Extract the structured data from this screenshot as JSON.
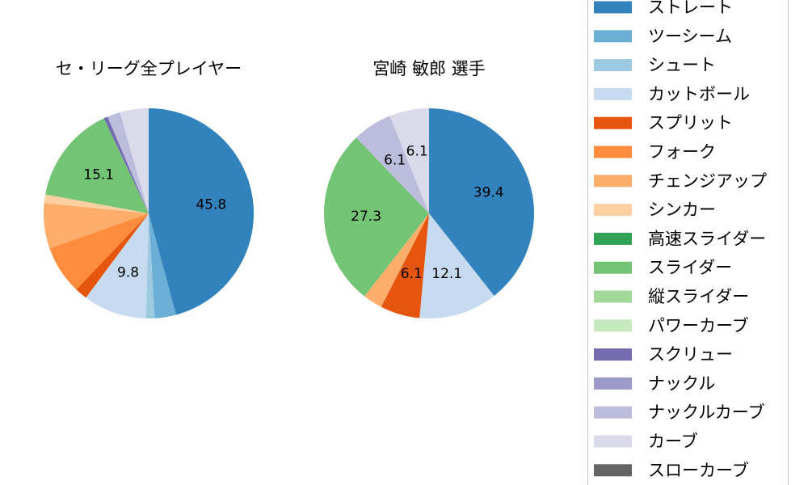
{
  "chart_data": [
    {
      "type": "pie",
      "title": "セ・リーグ全プレイヤー",
      "slices": [
        {
          "name": "ストレート",
          "value": 45.8,
          "label": "45.8",
          "color": "#3182bd"
        },
        {
          "name": "ツーシーム",
          "value": 3.3,
          "label": "",
          "color": "#6baed6"
        },
        {
          "name": "シュート",
          "value": 1.3,
          "label": "",
          "color": "#9ecae1"
        },
        {
          "name": "カットボール",
          "value": 9.8,
          "label": "9.8",
          "color": "#c6dbef"
        },
        {
          "name": "スプリット",
          "value": 1.9,
          "label": "",
          "color": "#e6550d"
        },
        {
          "name": "フォーク",
          "value": 7.5,
          "label": "",
          "color": "#fd8d3c"
        },
        {
          "name": "チェンジアップ",
          "value": 7.0,
          "label": "",
          "color": "#fdae6b"
        },
        {
          "name": "シンカー",
          "value": 1.3,
          "label": "",
          "color": "#fdd0a2"
        },
        {
          "name": "スライダー",
          "value": 15.1,
          "label": "15.1",
          "color": "#74c476"
        },
        {
          "name": "スクリュー",
          "value": 0.6,
          "label": "",
          "color": "#756bb1"
        },
        {
          "name": "ナックルカーブ",
          "value": 2.0,
          "label": "",
          "color": "#bcbddc"
        },
        {
          "name": "カーブ",
          "value": 4.4,
          "label": "",
          "color": "#dadaeb"
        }
      ]
    },
    {
      "type": "pie",
      "title": "宮崎 敏郎  選手",
      "slices": [
        {
          "name": "ストレート",
          "value": 39.4,
          "label": "39.4",
          "color": "#3182bd"
        },
        {
          "name": "カットボール",
          "value": 12.1,
          "label": "12.1",
          "color": "#c6dbef"
        },
        {
          "name": "スプリット",
          "value": 6.1,
          "label": "6.1",
          "color": "#e6550d"
        },
        {
          "name": "チェンジアップ",
          "value": 3.0,
          "label": "",
          "color": "#fdae6b"
        },
        {
          "name": "スライダー",
          "value": 27.3,
          "label": "27.3",
          "color": "#74c476"
        },
        {
          "name": "ナックルカーブ",
          "value": 6.1,
          "label": "6.1",
          "color": "#bcbddc"
        },
        {
          "name": "カーブ",
          "value": 6.1,
          "label": "6.1",
          "color": "#dadaeb"
        }
      ]
    }
  ],
  "legend": {
    "placement": "right",
    "items": [
      {
        "name": "ストレート",
        "color": "#3182bd"
      },
      {
        "name": "ツーシーム",
        "color": "#6baed6"
      },
      {
        "name": "シュート",
        "color": "#9ecae1"
      },
      {
        "name": "カットボール",
        "color": "#c6dbef"
      },
      {
        "name": "スプリット",
        "color": "#e6550d"
      },
      {
        "name": "フォーク",
        "color": "#fd8d3c"
      },
      {
        "name": "チェンジアップ",
        "color": "#fdae6b"
      },
      {
        "name": "シンカー",
        "color": "#fdd0a2"
      },
      {
        "name": "高速スライダー",
        "color": "#31a354"
      },
      {
        "name": "スライダー",
        "color": "#74c476"
      },
      {
        "name": "縦スライダー",
        "color": "#a1d99b"
      },
      {
        "name": "パワーカーブ",
        "color": "#c7e9c0"
      },
      {
        "name": "スクリュー",
        "color": "#756bb1"
      },
      {
        "name": "ナックル",
        "color": "#9e9ac8"
      },
      {
        "name": "ナックルカーブ",
        "color": "#bcbddc"
      },
      {
        "name": "カーブ",
        "color": "#dadaeb"
      },
      {
        "name": "スローカーブ",
        "color": "#636363"
      }
    ]
  }
}
